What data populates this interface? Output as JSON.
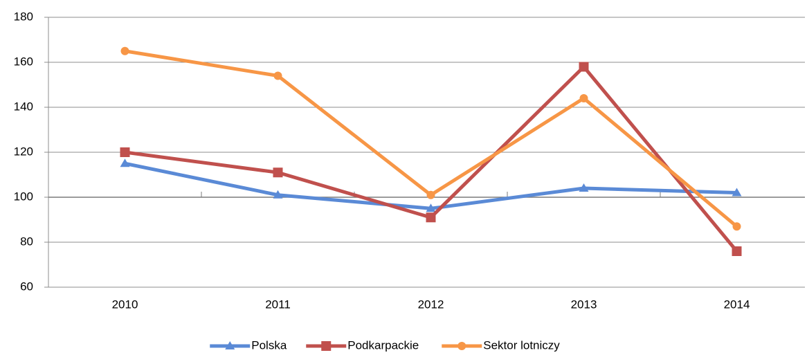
{
  "chart_data": {
    "type": "line",
    "categories": [
      "2010",
      "2011",
      "2012",
      "2013",
      "2014"
    ],
    "series": [
      {
        "name": "Polska",
        "color": "#5a8ad6",
        "marker": "triangle",
        "values": [
          115,
          101,
          95,
          104,
          102
        ]
      },
      {
        "name": "Podkarpackie",
        "color": "#c0504d",
        "marker": "square",
        "values": [
          120,
          111,
          91,
          158,
          76
        ]
      },
      {
        "name": "Sektor lotniczy",
        "color": "#f79646",
        "marker": "circle",
        "values": [
          165,
          154,
          101,
          144,
          87
        ]
      }
    ],
    "ylim": [
      60,
      180
    ],
    "yticks": [
      60,
      80,
      100,
      120,
      140,
      160,
      180
    ],
    "grid": true,
    "xaxis_crosses": 100,
    "legend": "bottom"
  }
}
